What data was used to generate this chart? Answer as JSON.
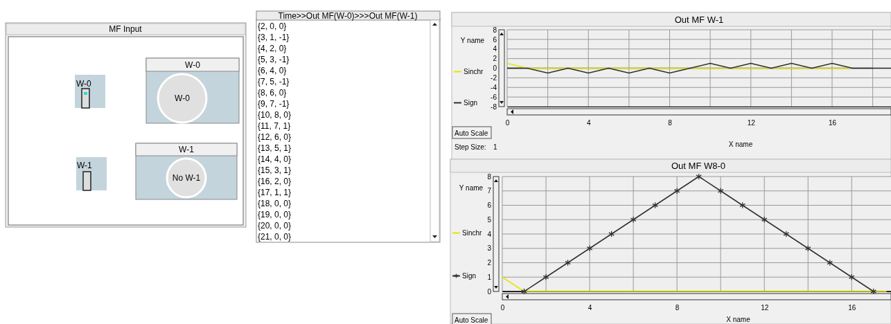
{
  "chart_data": [
    {
      "type": "other",
      "title": "MF Input",
      "annotations": [
        "W-0",
        "W-0",
        "W-0",
        "W-1",
        "W-1",
        "No W-1"
      ]
    },
    {
      "type": "other",
      "title": "Time>>Out MF(W-0)>>>Out MF(W-1)",
      "annotations": [
        "{2, 0, 0}",
        "{3, 1, -1}",
        "{4, 2, 0}",
        "{5, 3, -1}",
        "{6, 4, 0}",
        "{7, 5, -1}",
        "{8, 6, 0}",
        "{9, 7, -1}",
        "{10, 8, 0}",
        "{11, 7, 1}",
        "{12, 6, 0}",
        "{13, 5, 1}",
        "{14, 4, 0}",
        "{15, 3, 1}",
        "{16, 2, 0}",
        "{17, 1, 1}",
        "{18, 0, 0}",
        "{19, 0, 0}",
        "{20, 0, 0}",
        "{21, 0, 0}"
      ]
    },
    {
      "type": "line",
      "title": "Out MF W-1",
      "xlabel": "X name",
      "ylabel": "Y name",
      "xlim": [
        0,
        18.9
      ],
      "xticks": [
        0,
        {
          "value": 2,
          "label": null
        },
        4,
        {
          "value": 6,
          "label": null
        },
        8,
        {
          "value": 10,
          "label": null
        },
        12,
        {
          "value": 14,
          "label": null
        },
        16,
        {
          "value": 18,
          "label": null
        }
      ],
      "ylim": [
        -8,
        8
      ],
      "yticks": [
        -8,
        -6,
        -4,
        -2,
        0,
        2,
        4,
        6,
        8
      ],
      "grid": true,
      "legend": "left",
      "annotations": [
        "Auto Scale",
        "Step Size:",
        "1"
      ],
      "series": [
        {
          "name": "Sinchr",
          "color": "#e6e600",
          "x": [
            0,
            1,
            17
          ],
          "values": [
            1,
            0,
            0
          ]
        },
        {
          "name": "Sign",
          "color": "#303030",
          "x": [
            0,
            1,
            2,
            3,
            4,
            5,
            6,
            7,
            8,
            9,
            10,
            11,
            12,
            13,
            14,
            15,
            16,
            17,
            18
          ],
          "values": [
            0,
            0,
            -1,
            0,
            -1,
            0,
            -1,
            0,
            -1,
            0,
            1,
            0,
            1,
            0,
            1,
            0,
            1,
            0,
            0
          ]
        }
      ]
    },
    {
      "type": "line",
      "title": "Out MF W8-0",
      "xlabel": "X name",
      "ylabel": "Y name",
      "xlim": [
        0,
        17.8
      ],
      "xticks": [
        0,
        {
          "value": 2,
          "label": null
        },
        4,
        {
          "value": 6,
          "label": null
        },
        8,
        {
          "value": 10,
          "label": null
        },
        12,
        {
          "value": 14,
          "label": null
        },
        16
      ],
      "ylim": [
        0,
        8
      ],
      "yticks": [
        0,
        1,
        2,
        3,
        4,
        5,
        6,
        7,
        8
      ],
      "grid": true,
      "legend": "left",
      "annotations": [
        "Auto Scale"
      ],
      "series": [
        {
          "name": "Sinchr",
          "color": "#e6e600",
          "x": [
            0,
            1,
            17.6
          ],
          "values": [
            1,
            0,
            0
          ]
        },
        {
          "name": "Sign",
          "color": "#303030",
          "marker": "cross",
          "x": [
            1,
            2,
            3,
            4,
            5,
            6,
            7,
            8,
            9,
            10,
            11,
            12,
            13,
            14,
            15,
            16,
            17
          ],
          "values": [
            0,
            1,
            2,
            3,
            4,
            5,
            6,
            7,
            8,
            7,
            6,
            5,
            4,
            3,
            2,
            1,
            0
          ]
        }
      ]
    }
  ]
}
